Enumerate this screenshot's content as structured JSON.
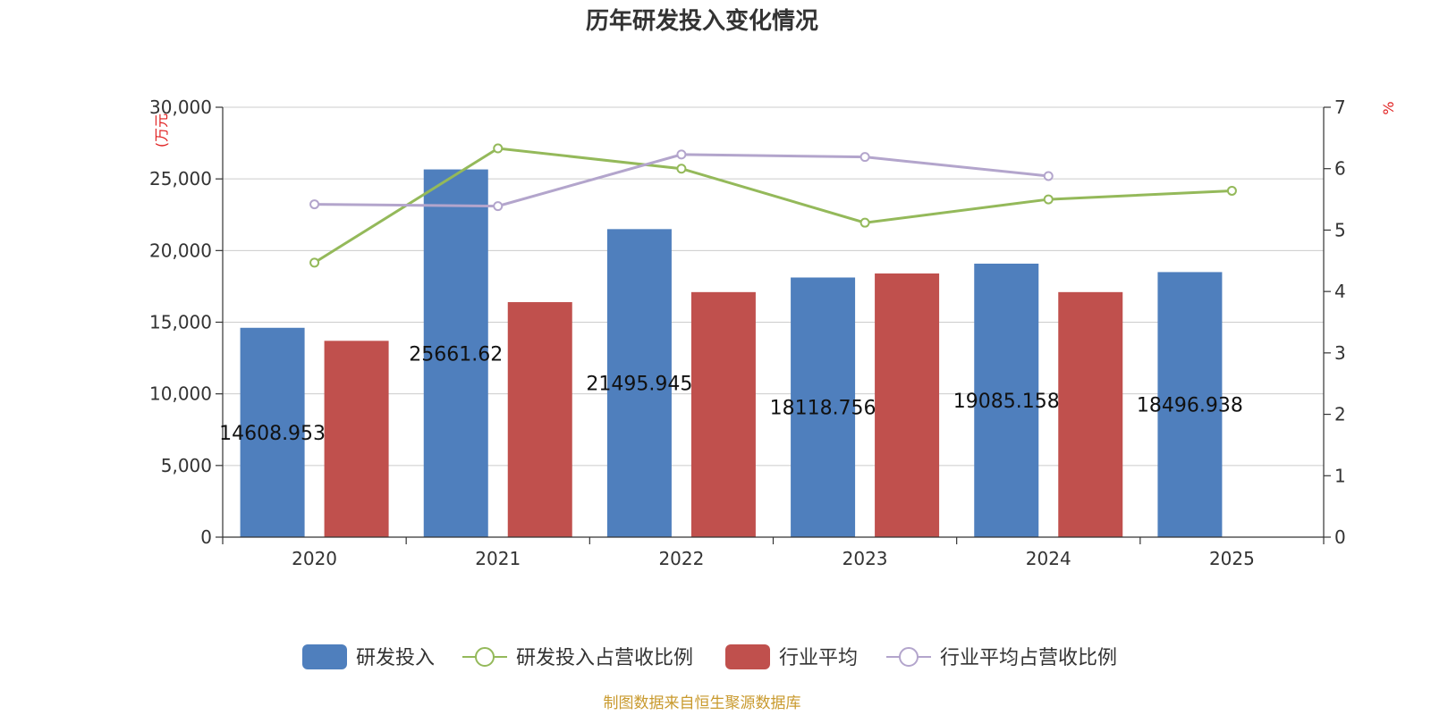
{
  "chart_data": {
    "type": "bar",
    "title": "历年研发投入变化情况",
    "categories": [
      "2020",
      "2021",
      "2022",
      "2023",
      "2024",
      "2025"
    ],
    "left_axis": {
      "unit_label": "(万元",
      "ylim": [
        0,
        30000
      ],
      "ticks": [
        "0",
        "5,000",
        "10,000",
        "15,000",
        "20,000",
        "25,000",
        "30,000"
      ],
      "tick_values": [
        0,
        5000,
        10000,
        15000,
        20000,
        25000,
        30000
      ]
    },
    "right_axis": {
      "unit_label": "%",
      "ylim": [
        0,
        7
      ],
      "ticks": [
        "0",
        "1",
        "2",
        "3",
        "4",
        "5",
        "6",
        "7"
      ],
      "tick_values": [
        0,
        1,
        2,
        3,
        4,
        5,
        6,
        7
      ]
    },
    "grid": true,
    "legend_position": "bottom",
    "series": [
      {
        "name": "研发投入",
        "type": "bar",
        "axis": "left",
        "color": "#4f7fbd",
        "values": [
          14608.953,
          25661.62,
          21495.945,
          18118.756,
          19085.158,
          18496.938
        ],
        "labels": [
          "14608.953",
          "25661.62",
          "21495.945",
          "18118.756",
          "19085.158",
          "18496.938"
        ]
      },
      {
        "name": "研发投入占营收比例",
        "type": "line",
        "axis": "right",
        "color": "#94b95a",
        "values": [
          4.47,
          6.33,
          6.0,
          5.12,
          5.5,
          5.64
        ]
      },
      {
        "name": "行业平均",
        "type": "bar",
        "axis": "left",
        "color": "#c0504d",
        "values": [
          13700,
          16400,
          17100,
          18400,
          17100,
          null
        ]
      },
      {
        "name": "行业平均占营收比例",
        "type": "line",
        "axis": "right",
        "color": "#b3a5cc",
        "values": [
          5.42,
          5.39,
          6.23,
          6.19,
          5.88,
          null
        ]
      }
    ]
  },
  "legend": [
    {
      "label": "研发投入",
      "kind": "bar",
      "color": "#4f7fbd"
    },
    {
      "label": "研发投入占营收比例",
      "kind": "line",
      "color": "#94b95a"
    },
    {
      "label": "行业平均",
      "kind": "bar",
      "color": "#c0504d"
    },
    {
      "label": "行业平均占营收比例",
      "kind": "line",
      "color": "#b3a5cc"
    }
  ],
  "source": "制图数据来自恒生聚源数据库"
}
